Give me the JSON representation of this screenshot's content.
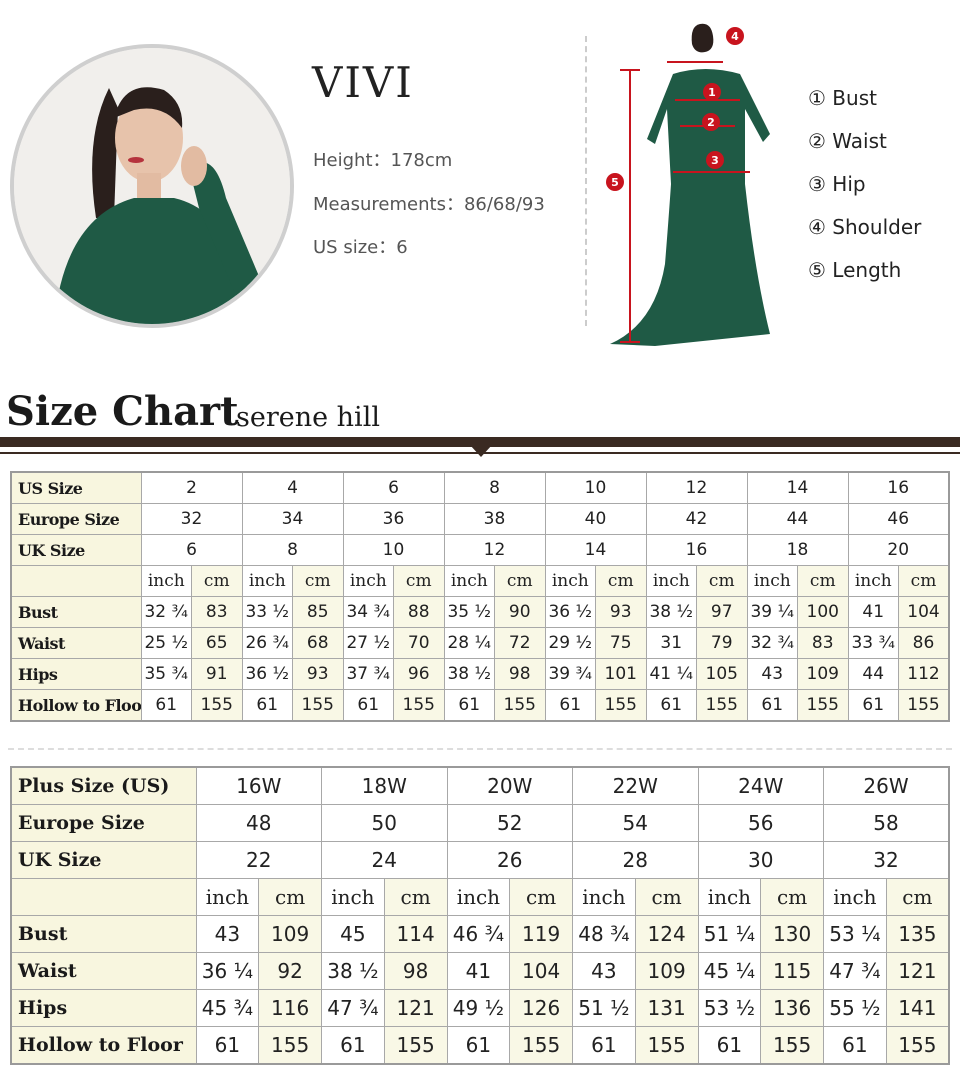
{
  "model": {
    "name": "VIVI",
    "height_label": "Height：",
    "height": "178cm",
    "measurements_label": "Measurements：",
    "measurements": "86/68/93",
    "us_size_label": "US size：",
    "us_size": "6"
  },
  "diagram": {
    "marker_color": "#c8141e",
    "markers": [
      "1",
      "2",
      "3",
      "4",
      "5"
    ],
    "legend": [
      {
        "num": "①",
        "label": "Bust"
      },
      {
        "num": "②",
        "label": "Waist"
      },
      {
        "num": "③",
        "label": "Hip"
      },
      {
        "num": "④",
        "label": "Shoulder"
      },
      {
        "num": "⑤",
        "label": "Length"
      }
    ]
  },
  "heading": {
    "title": "Size Chart",
    "subtitle": "serene hill"
  },
  "standard_table": {
    "header_rows": [
      {
        "label": "US Size",
        "values": [
          "2",
          "4",
          "6",
          "8",
          "10",
          "12",
          "14",
          "16"
        ]
      },
      {
        "label": "Europe Size",
        "values": [
          "32",
          "34",
          "36",
          "38",
          "40",
          "42",
          "44",
          "46"
        ]
      },
      {
        "label": "UK Size",
        "values": [
          "6",
          "8",
          "10",
          "12",
          "14",
          "16",
          "18",
          "20"
        ]
      }
    ],
    "units": {
      "inch": "inch",
      "cm": "cm"
    },
    "measure_rows": [
      {
        "label": "Bust",
        "values": [
          [
            "32 ¾",
            "83"
          ],
          [
            "33 ½",
            "85"
          ],
          [
            "34 ¾",
            "88"
          ],
          [
            "35 ½",
            "90"
          ],
          [
            "36 ½",
            "93"
          ],
          [
            "38 ½",
            "97"
          ],
          [
            "39 ¼",
            "100"
          ],
          [
            "41",
            "104"
          ]
        ]
      },
      {
        "label": "Waist",
        "values": [
          [
            "25 ½",
            "65"
          ],
          [
            "26 ¾",
            "68"
          ],
          [
            "27 ½",
            "70"
          ],
          [
            "28 ¼",
            "72"
          ],
          [
            "29 ½",
            "75"
          ],
          [
            "31",
            "79"
          ],
          [
            "32 ¾",
            "83"
          ],
          [
            "33 ¾",
            "86"
          ]
        ]
      },
      {
        "label": "Hips",
        "values": [
          [
            "35 ¾",
            "91"
          ],
          [
            "36 ½",
            "93"
          ],
          [
            "37 ¾",
            "96"
          ],
          [
            "38 ½",
            "98"
          ],
          [
            "39 ¾",
            "101"
          ],
          [
            "41 ¼",
            "105"
          ],
          [
            "43",
            "109"
          ],
          [
            "44",
            "112"
          ]
        ]
      },
      {
        "label": "Hollow to Floor",
        "values": [
          [
            "61",
            "155"
          ],
          [
            "61",
            "155"
          ],
          [
            "61",
            "155"
          ],
          [
            "61",
            "155"
          ],
          [
            "61",
            "155"
          ],
          [
            "61",
            "155"
          ],
          [
            "61",
            "155"
          ],
          [
            "61",
            "155"
          ]
        ]
      }
    ]
  },
  "plus_table": {
    "header_rows": [
      {
        "label": "Plus Size (US)",
        "values": [
          "16W",
          "18W",
          "20W",
          "22W",
          "24W",
          "26W"
        ]
      },
      {
        "label": "Europe Size",
        "values": [
          "48",
          "50",
          "52",
          "54",
          "56",
          "58"
        ]
      },
      {
        "label": "UK Size",
        "values": [
          "22",
          "24",
          "26",
          "28",
          "30",
          "32"
        ]
      }
    ],
    "units": {
      "inch": "inch",
      "cm": "cm"
    },
    "measure_rows": [
      {
        "label": "Bust",
        "values": [
          [
            "43",
            "109"
          ],
          [
            "45",
            "114"
          ],
          [
            "46 ¾",
            "119"
          ],
          [
            "48 ¾",
            "124"
          ],
          [
            "51 ¼",
            "130"
          ],
          [
            "53 ¼",
            "135"
          ]
        ]
      },
      {
        "label": "Waist",
        "values": [
          [
            "36 ¼",
            "92"
          ],
          [
            "38 ½",
            "98"
          ],
          [
            "41",
            "104"
          ],
          [
            "43",
            "109"
          ],
          [
            "45 ¼",
            "115"
          ],
          [
            "47 ¾",
            "121"
          ]
        ]
      },
      {
        "label": "Hips",
        "values": [
          [
            "45 ¾",
            "116"
          ],
          [
            "47 ¾",
            "121"
          ],
          [
            "49 ½",
            "126"
          ],
          [
            "51 ½",
            "131"
          ],
          [
            "53 ½",
            "136"
          ],
          [
            "55 ½",
            "141"
          ]
        ]
      },
      {
        "label": "Hollow to Floor",
        "values": [
          [
            "61",
            "155"
          ],
          [
            "61",
            "155"
          ],
          [
            "61",
            "155"
          ],
          [
            "61",
            "155"
          ],
          [
            "61",
            "155"
          ],
          [
            "61",
            "155"
          ]
        ]
      }
    ]
  }
}
